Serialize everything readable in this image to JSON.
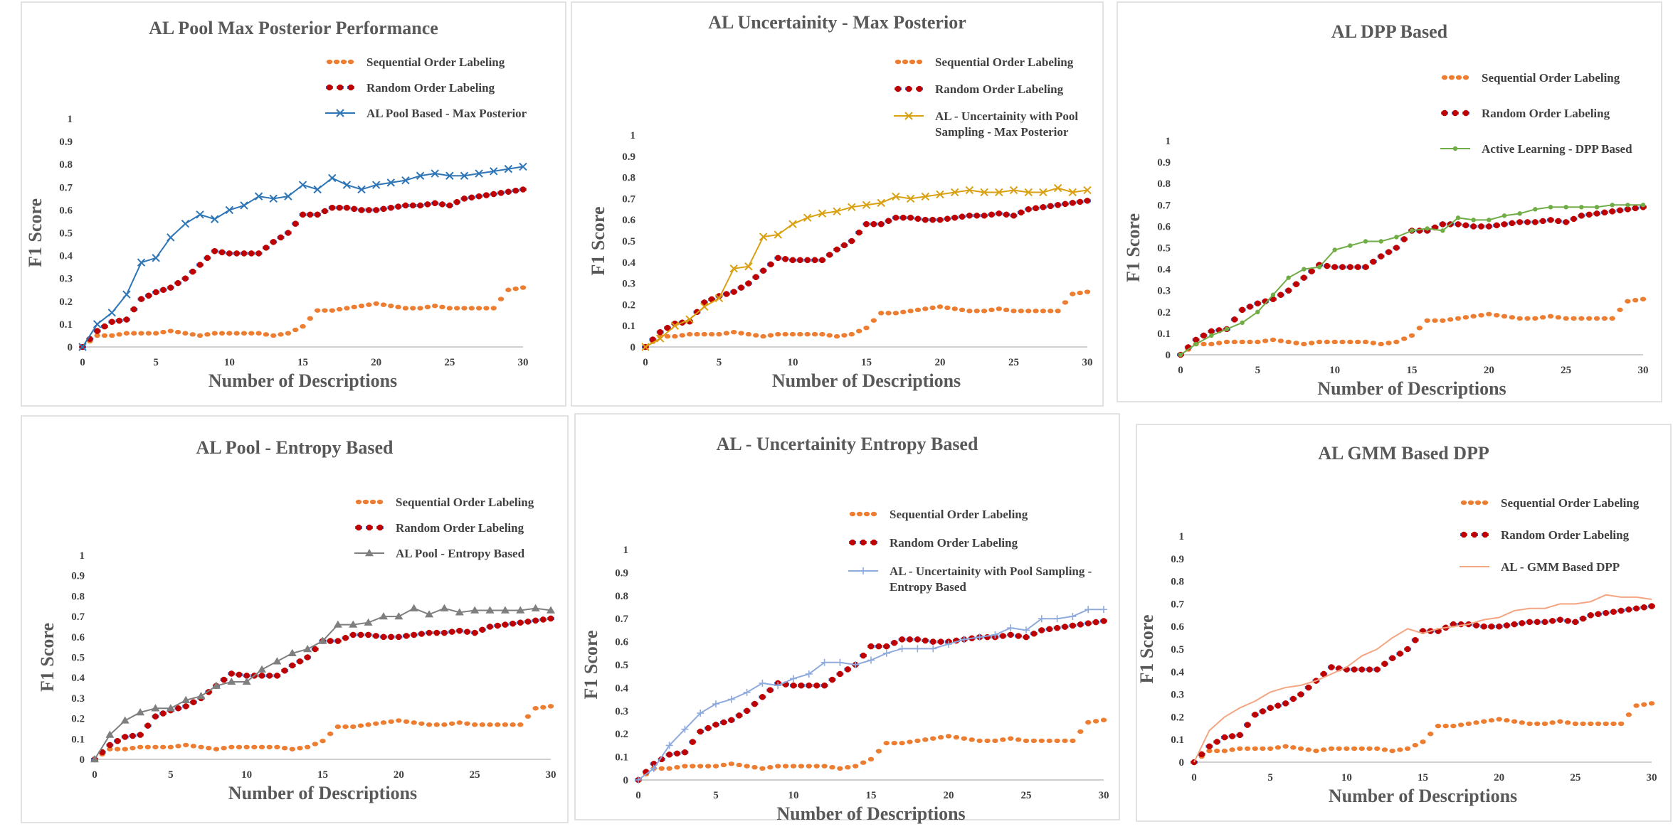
{
  "colors": {
    "sequential": "#ED7D31",
    "random_dot": "#C00000",
    "random_marker": "#4472C4",
    "axis": "#BFBFBF",
    "text": "#595959",
    "frame": "#D9D9D9"
  },
  "shared": {
    "xlabel": "Number of Descriptions",
    "ylabel": "F1 Score",
    "xticks": [
      "0",
      "5",
      "10",
      "15",
      "20",
      "25",
      "30"
    ],
    "yticks": [
      "0",
      "0.1",
      "0.2",
      "0.3",
      "0.4",
      "0.5",
      "0.6",
      "0.7",
      "0.8",
      "0.9",
      "1"
    ],
    "legend_sequential": "Sequential Order Labeling",
    "legend_random": "Random Order Labeling"
  },
  "chart_data": [
    {
      "type": "line",
      "title": "AL Pool Max Posterior Performance",
      "xlabel": "Number of Descriptions",
      "ylabel": "F1 Score",
      "xlim": [
        0,
        30
      ],
      "ylim": [
        0,
        1
      ],
      "legend_position": "top-right",
      "series": [
        {
          "name": "Sequential Order Labeling",
          "style": "sequential"
        },
        {
          "name": "Random Order Labeling",
          "style": "random"
        },
        {
          "name": "AL Pool Based - Max Posterior",
          "style": "al",
          "color": "#2E75B6",
          "marker": "x",
          "values": [
            0,
            0.1,
            0.15,
            0.23,
            0.37,
            0.39,
            0.48,
            0.54,
            0.58,
            0.56,
            0.6,
            0.62,
            0.66,
            0.65,
            0.66,
            0.71,
            0.69,
            0.74,
            0.71,
            0.69,
            0.71,
            0.72,
            0.73,
            0.75,
            0.76,
            0.75,
            0.75,
            0.76,
            0.77,
            0.78,
            0.79
          ]
        }
      ]
    },
    {
      "type": "line",
      "title": "AL Uncertainity - Max Posterior",
      "xlabel": "Number of Descriptions",
      "ylabel": "F1 Score",
      "xlim": [
        0,
        30
      ],
      "ylim": [
        0,
        1
      ],
      "legend_position": "top-right",
      "series": [
        {
          "name": "Sequential Order Labeling",
          "style": "sequential"
        },
        {
          "name": "Random Order Labeling",
          "style": "random"
        },
        {
          "name": "AL - Uncertainity with Pool Sampling - Max Posterior",
          "legend_lines": [
            "AL - Uncertainity with Pool",
            "Sampling - Max Posterior"
          ],
          "style": "al",
          "color": "#D9A011",
          "marker": "x",
          "values": [
            0,
            0.04,
            0.1,
            0.13,
            0.19,
            0.23,
            0.37,
            0.38,
            0.52,
            0.53,
            0.58,
            0.61,
            0.63,
            0.64,
            0.66,
            0.67,
            0.68,
            0.71,
            0.7,
            0.71,
            0.72,
            0.73,
            0.74,
            0.73,
            0.73,
            0.74,
            0.73,
            0.73,
            0.75,
            0.73,
            0.74
          ]
        }
      ]
    },
    {
      "type": "line",
      "title": "AL DPP Based",
      "xlabel": "Number of Descriptions",
      "ylabel": "F1 Score",
      "xlim": [
        0,
        30
      ],
      "ylim": [
        0,
        1
      ],
      "legend_position": "top-right",
      "series": [
        {
          "name": "Sequential Order Labeling",
          "style": "sequential"
        },
        {
          "name": "Random Order Labeling",
          "style": "random"
        },
        {
          "name": "Active Learning - DPP Based",
          "style": "al",
          "color": "#70AD47",
          "marker": "dot",
          "values": [
            0,
            0.05,
            0.09,
            0.12,
            0.15,
            0.2,
            0.28,
            0.36,
            0.4,
            0.41,
            0.49,
            0.51,
            0.53,
            0.53,
            0.55,
            0.58,
            0.59,
            0.58,
            0.64,
            0.63,
            0.63,
            0.65,
            0.66,
            0.68,
            0.69,
            0.69,
            0.69,
            0.69,
            0.7,
            0.7,
            0.7
          ]
        }
      ]
    },
    {
      "type": "line",
      "title": "AL Pool - Entropy Based",
      "xlabel": "Number of Descriptions",
      "ylabel": "F1 Score",
      "xlim": [
        0,
        30
      ],
      "ylim": [
        0,
        1
      ],
      "legend_position": "top-right",
      "series": [
        {
          "name": "Sequential Order Labeling",
          "style": "sequential"
        },
        {
          "name": "Random Order Labeling",
          "style": "random"
        },
        {
          "name": "AL Pool - Entropy Based",
          "style": "al",
          "color": "#7F7F7F",
          "marker": "triangle",
          "values": [
            0,
            0.12,
            0.19,
            0.23,
            0.25,
            0.25,
            0.29,
            0.31,
            0.36,
            0.38,
            0.38,
            0.44,
            0.48,
            0.52,
            0.54,
            0.58,
            0.66,
            0.66,
            0.67,
            0.7,
            0.7,
            0.74,
            0.71,
            0.74,
            0.72,
            0.73,
            0.73,
            0.73,
            0.73,
            0.74,
            0.73
          ]
        }
      ]
    },
    {
      "type": "line",
      "title": "AL - Uncertainity Entropy Based",
      "xlabel": "Number of Descriptions",
      "ylabel": "F1 Score",
      "xlim": [
        0,
        30
      ],
      "ylim": [
        0,
        1
      ],
      "legend_position": "top-right",
      "series": [
        {
          "name": "Sequential Order Labeling",
          "style": "sequential"
        },
        {
          "name": "Random Order Labeling",
          "style": "random"
        },
        {
          "name": "AL - Uncertainity with Pool Sampling - Entropy Based",
          "legend_lines": [
            "AL - Uncertainity with Pool Sampling -",
            "Entropy Based"
          ],
          "style": "al",
          "color": "#8FAADC",
          "marker": "plus",
          "values": [
            0,
            0.05,
            0.15,
            0.22,
            0.29,
            0.33,
            0.35,
            0.38,
            0.42,
            0.41,
            0.44,
            0.46,
            0.51,
            0.51,
            0.5,
            0.52,
            0.55,
            0.57,
            0.57,
            0.57,
            0.59,
            0.61,
            0.62,
            0.63,
            0.66,
            0.65,
            0.7,
            0.7,
            0.71,
            0.74,
            0.74
          ]
        }
      ]
    },
    {
      "type": "line",
      "title": "AL GMM Based DPP",
      "xlabel": "Number of Descriptions",
      "ylabel": "F1 Score",
      "xlim": [
        0,
        30
      ],
      "ylim": [
        0,
        1
      ],
      "legend_position": "top-right",
      "series": [
        {
          "name": "Sequential Order Labeling",
          "style": "sequential"
        },
        {
          "name": "Random Order Labeling",
          "style": "random"
        },
        {
          "name": "AL - GMM Based DPP",
          "style": "al",
          "color": "#F4A582",
          "marker": "none",
          "values": [
            0,
            0.14,
            0.2,
            0.24,
            0.27,
            0.31,
            0.33,
            0.34,
            0.36,
            0.39,
            0.42,
            0.47,
            0.5,
            0.55,
            0.59,
            0.57,
            0.59,
            0.6,
            0.61,
            0.63,
            0.64,
            0.67,
            0.68,
            0.68,
            0.7,
            0.7,
            0.71,
            0.74,
            0.73,
            0.73,
            0.72
          ]
        }
      ]
    }
  ],
  "baselines": {
    "sequential_values": [
      0,
      0.05,
      0.05,
      0.06,
      0.06,
      0.06,
      0.07,
      0.06,
      0.05,
      0.06,
      0.06,
      0.06,
      0.06,
      0.05,
      0.06,
      0.09,
      0.16,
      0.16,
      0.17,
      0.18,
      0.19,
      0.18,
      0.17,
      0.17,
      0.18,
      0.17,
      0.17,
      0.17,
      0.17,
      0.25,
      0.26
    ],
    "random_values": [
      0,
      0.07,
      0.11,
      0.12,
      0.21,
      0.24,
      0.26,
      0.3,
      0.36,
      0.42,
      0.41,
      0.41,
      0.41,
      0.46,
      0.5,
      0.58,
      0.58,
      0.61,
      0.61,
      0.6,
      0.6,
      0.61,
      0.62,
      0.62,
      0.63,
      0.62,
      0.65,
      0.66,
      0.67,
      0.68,
      0.69
    ]
  }
}
